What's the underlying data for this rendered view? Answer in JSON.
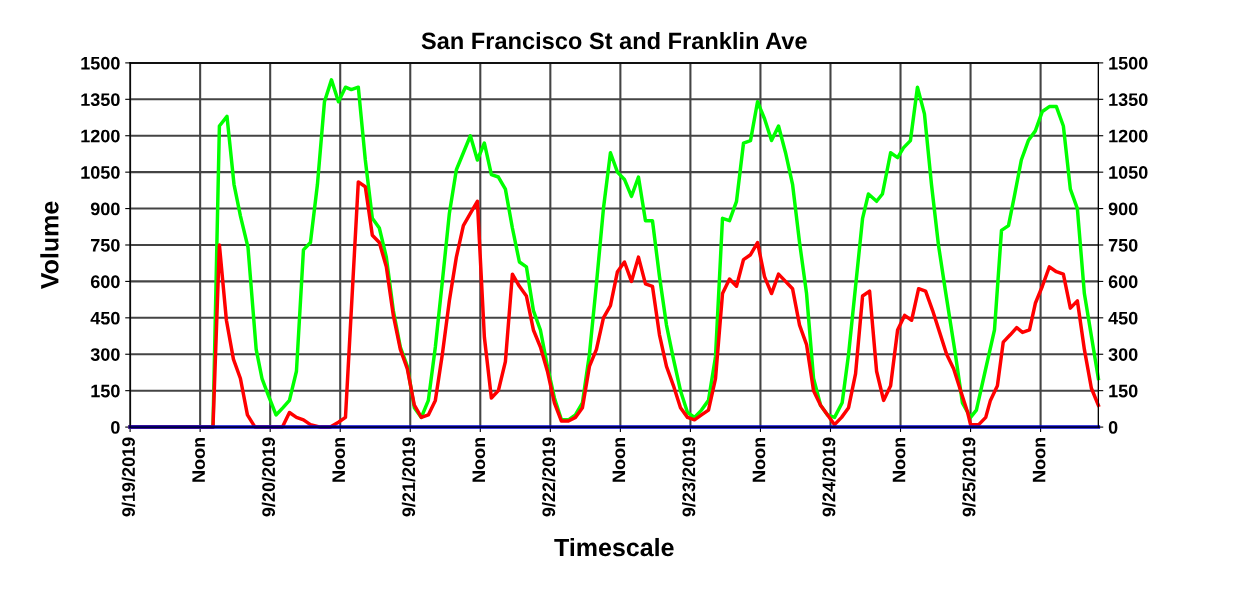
{
  "chart_data": {
    "type": "line",
    "title": "San Francisco St and Franklin Ave",
    "xlabel": "Timescale",
    "ylabel": "Volume",
    "xlim": [
      "2019-09-19T00:00",
      "2019-09-25T21:54"
    ],
    "xticks": [
      {
        "value": "2019-09-19T00:00",
        "label": "9/19/2019"
      },
      {
        "value": "2019-09-19T12:00",
        "label": "Noon"
      },
      {
        "value": "2019-09-20T00:00",
        "label": "9/20/2019"
      },
      {
        "value": "2019-09-20T12:00",
        "label": "Noon"
      },
      {
        "value": "2019-09-21T00:00",
        "label": "9/21/2019"
      },
      {
        "value": "2019-09-21T12:00",
        "label": "Noon"
      },
      {
        "value": "2019-09-22T00:00",
        "label": "9/22/2019"
      },
      {
        "value": "2019-09-22T12:00",
        "label": "Noon"
      },
      {
        "value": "2019-09-23T00:00",
        "label": "9/23/2019"
      },
      {
        "value": "2019-09-23T12:00",
        "label": "Noon"
      },
      {
        "value": "2019-09-24T00:00",
        "label": "9/24/2019"
      },
      {
        "value": "2019-09-24T12:00",
        "label": "Noon"
      },
      {
        "value": "2019-09-25T00:00",
        "label": "9/25/2019"
      },
      {
        "value": "2019-09-25T12:00",
        "label": "Noon"
      }
    ],
    "ylim": [
      0,
      1500
    ],
    "yticks": [
      0,
      150,
      300,
      450,
      600,
      750,
      900,
      1050,
      1200,
      1350,
      1500
    ],
    "y2lim": [
      0,
      1500
    ],
    "y2ticks": [
      0,
      150,
      300,
      450,
      600,
      750,
      900,
      1050,
      1200,
      1350,
      1500
    ],
    "grid": true,
    "marker": "none",
    "line_style": "solid",
    "series": [
      {
        "color": "#00ff00",
        "x": [
          "2019-09-19T00:00",
          "2019-09-19T14:12",
          "2019-09-19T15:18",
          "2019-09-19T16:36",
          "2019-09-19T17:48",
          "2019-09-19T18:54",
          "2019-09-19T20:12",
          "2019-09-19T21:36",
          "2019-09-19T22:36",
          "2019-09-19T23:42",
          "2019-09-20T01:00",
          "2019-09-20T02:12",
          "2019-09-20T03:18",
          "2019-09-20T04:30",
          "2019-09-20T05:42",
          "2019-09-20T06:54",
          "2019-09-20T08:06",
          "2019-09-20T09:18",
          "2019-09-20T10:30",
          "2019-09-20T11:42",
          "2019-09-20T12:54",
          "2019-09-20T13:54",
          "2019-09-20T15:06",
          "2019-09-20T16:18",
          "2019-09-20T17:30",
          "2019-09-20T18:42",
          "2019-09-20T19:54",
          "2019-09-20T21:06",
          "2019-09-20T22:18",
          "2019-09-20T23:30",
          "2019-09-21T00:42",
          "2019-09-21T01:54",
          "2019-09-21T03:06",
          "2019-09-21T04:18",
          "2019-09-21T05:30",
          "2019-09-21T06:42",
          "2019-09-21T07:54",
          "2019-09-21T10:18",
          "2019-09-21T11:30",
          "2019-09-21T12:42",
          "2019-09-21T13:54",
          "2019-09-21T15:06",
          "2019-09-21T16:18",
          "2019-09-21T17:30",
          "2019-09-21T18:42",
          "2019-09-21T19:54",
          "2019-09-21T21:06",
          "2019-09-21T22:18",
          "2019-09-21T23:30",
          "2019-09-22T00:42",
          "2019-09-22T01:54",
          "2019-09-22T03:06",
          "2019-09-22T04:18",
          "2019-09-22T05:30",
          "2019-09-22T06:42",
          "2019-09-22T07:54",
          "2019-09-22T09:06",
          "2019-09-22T10:18",
          "2019-09-22T11:30",
          "2019-09-22T12:42",
          "2019-09-22T13:54",
          "2019-09-22T15:06",
          "2019-09-22T16:18",
          "2019-09-22T17:30",
          "2019-09-22T18:42",
          "2019-09-22T19:54",
          "2019-09-22T21:06",
          "2019-09-22T22:18",
          "2019-09-22T23:30",
          "2019-09-23T00:42",
          "2019-09-23T01:54",
          "2019-09-23T03:06",
          "2019-09-23T04:18",
          "2019-09-23T05:30",
          "2019-09-23T06:42",
          "2019-09-23T07:54",
          "2019-09-23T09:06",
          "2019-09-23T10:18",
          "2019-09-23T11:30",
          "2019-09-23T12:42",
          "2019-09-23T13:54",
          "2019-09-23T15:06",
          "2019-09-23T16:18",
          "2019-09-23T17:30",
          "2019-09-23T18:42",
          "2019-09-23T19:54",
          "2019-09-23T21:06",
          "2019-09-23T22:18",
          "2019-09-23T23:30",
          "2019-09-24T00:42",
          "2019-09-24T02:00",
          "2019-09-24T03:06",
          "2019-09-24T05:30",
          "2019-09-24T06:30",
          "2019-09-24T07:54",
          "2019-09-24T08:54",
          "2019-09-24T10:18",
          "2019-09-24T11:30",
          "2019-09-24T12:30",
          "2019-09-24T13:42",
          "2019-09-24T14:54",
          "2019-09-24T16:06",
          "2019-09-24T17:18",
          "2019-09-24T18:30",
          "2019-09-24T19:42",
          "2019-09-24T21:24",
          "2019-09-24T22:36",
          "2019-09-25T00:00",
          "2019-09-25T01:00",
          "2019-09-25T02:30",
          "2019-09-25T04:06",
          "2019-09-25T05:18",
          "2019-09-25T06:30",
          "2019-09-25T07:30",
          "2019-09-25T08:42",
          "2019-09-25T09:54",
          "2019-09-25T11:06",
          "2019-09-25T12:18",
          "2019-09-25T13:30",
          "2019-09-25T14:42",
          "2019-09-25T15:54",
          "2019-09-25T17:06",
          "2019-09-25T18:18",
          "2019-09-25T19:30",
          "2019-09-25T21:54"
        ],
        "values": [
          0,
          0,
          1240,
          1280,
          1000,
          870,
          740,
          320,
          200,
          130,
          50,
          80,
          110,
          230,
          730,
          760,
          1000,
          1340,
          1430,
          1340,
          1400,
          1390,
          1400,
          1100,
          860,
          820,
          700,
          480,
          330,
          250,
          80,
          40,
          110,
          330,
          600,
          880,
          1060,
          1200,
          1100,
          1170,
          1040,
          1030,
          980,
          820,
          680,
          660,
          480,
          400,
          250,
          120,
          30,
          30,
          50,
          100,
          300,
          590,
          900,
          1130,
          1050,
          1020,
          950,
          1030,
          850,
          850,
          620,
          420,
          280,
          150,
          60,
          40,
          70,
          110,
          290,
          860,
          850,
          930,
          1170,
          1180,
          1340,
          1270,
          1180,
          1240,
          1130,
          1000,
          760,
          550,
          200,
          90,
          50,
          40,
          100,
          300,
          860,
          960,
          930,
          960,
          1130,
          1110,
          1150,
          1180,
          1400,
          1290,
          1000,
          750,
          560,
          300,
          100,
          40,
          70,
          230,
          400,
          810,
          830,
          950,
          1100,
          1180,
          1220,
          1300,
          1320,
          1320,
          1240,
          980,
          900,
          550,
          200
        ]
      },
      {
        "color": "#ff0000",
        "x": [
          "2019-09-19T00:00",
          "2019-09-19T14:12",
          "2019-09-19T15:18",
          "2019-09-19T16:30",
          "2019-09-19T17:42",
          "2019-09-19T18:54",
          "2019-09-19T20:06",
          "2019-09-19T21:24",
          "2019-09-20T02:06",
          "2019-09-20T03:18",
          "2019-09-20T04:30",
          "2019-09-20T05:42",
          "2019-09-20T06:54",
          "2019-09-20T08:36",
          "2019-09-20T10:18",
          "2019-09-20T11:42",
          "2019-09-20T12:54",
          "2019-09-20T15:06",
          "2019-09-20T16:18",
          "2019-09-20T17:30",
          "2019-09-20T18:42",
          "2019-09-20T19:54",
          "2019-09-20T21:06",
          "2019-09-20T22:18",
          "2019-09-20T23:30",
          "2019-09-21T00:42",
          "2019-09-21T01:54",
          "2019-09-21T03:06",
          "2019-09-21T04:18",
          "2019-09-21T05:30",
          "2019-09-21T06:42",
          "2019-09-21T07:54",
          "2019-09-21T09:06",
          "2019-09-21T10:18",
          "2019-09-21T11:30",
          "2019-09-21T12:42",
          "2019-09-21T13:54",
          "2019-09-21T15:06",
          "2019-09-21T16:18",
          "2019-09-21T17:30",
          "2019-09-21T18:42",
          "2019-09-21T19:54",
          "2019-09-21T21:06",
          "2019-09-21T22:18",
          "2019-09-21T23:30",
          "2019-09-22T00:42",
          "2019-09-22T01:54",
          "2019-09-22T03:06",
          "2019-09-22T04:18",
          "2019-09-22T05:30",
          "2019-09-22T06:42",
          "2019-09-22T07:54",
          "2019-09-22T09:06",
          "2019-09-22T10:18",
          "2019-09-22T11:30",
          "2019-09-22T12:42",
          "2019-09-22T13:54",
          "2019-09-22T15:06",
          "2019-09-22T16:18",
          "2019-09-22T17:30",
          "2019-09-22T18:42",
          "2019-09-22T19:54",
          "2019-09-22T21:06",
          "2019-09-22T22:18",
          "2019-09-22T23:30",
          "2019-09-23T00:42",
          "2019-09-23T01:54",
          "2019-09-23T03:06",
          "2019-09-23T04:18",
          "2019-09-23T05:30",
          "2019-09-23T06:42",
          "2019-09-23T07:54",
          "2019-09-23T09:06",
          "2019-09-23T10:18",
          "2019-09-23T11:30",
          "2019-09-23T12:42",
          "2019-09-23T13:54",
          "2019-09-23T15:06",
          "2019-09-23T16:18",
          "2019-09-23T17:30",
          "2019-09-23T18:42",
          "2019-09-23T19:54",
          "2019-09-23T21:06",
          "2019-09-23T22:18",
          "2019-09-23T23:30",
          "2019-09-24T00:42",
          "2019-09-24T01:54",
          "2019-09-24T03:06",
          "2019-09-24T04:18",
          "2019-09-24T05:30",
          "2019-09-24T06:42",
          "2019-09-24T07:54",
          "2019-09-24T09:06",
          "2019-09-24T10:18",
          "2019-09-24T11:30",
          "2019-09-24T12:42",
          "2019-09-24T13:54",
          "2019-09-24T15:06",
          "2019-09-24T16:18",
          "2019-09-24T17:30",
          "2019-09-24T18:42",
          "2019-09-24T19:54",
          "2019-09-24T21:06",
          "2019-09-24T22:18",
          "2019-09-24T23:30",
          "2019-09-25T00:00",
          "2019-09-25T01:24",
          "2019-09-25T02:36",
          "2019-09-25T03:24",
          "2019-09-25T04:36",
          "2019-09-25T05:36",
          "2019-09-25T06:48",
          "2019-09-25T07:54",
          "2019-09-25T08:54",
          "2019-09-25T10:06",
          "2019-09-25T11:06",
          "2019-09-25T12:18",
          "2019-09-25T13:30",
          "2019-09-25T14:42",
          "2019-09-25T15:54",
          "2019-09-25T17:06",
          "2019-09-25T18:18",
          "2019-09-25T19:30",
          "2019-09-25T20:42",
          "2019-09-25T21:54"
        ],
        "values": [
          0,
          0,
          750,
          440,
          280,
          200,
          50,
          0,
          0,
          60,
          40,
          30,
          10,
          0,
          0,
          20,
          40,
          1010,
          990,
          790,
          760,
          660,
          460,
          320,
          240,
          90,
          40,
          50,
          110,
          300,
          520,
          700,
          830,
          880,
          930,
          370,
          120,
          150,
          270,
          630,
          580,
          540,
          400,
          330,
          230,
          100,
          25,
          25,
          40,
          80,
          250,
          320,
          450,
          500,
          640,
          680,
          600,
          700,
          590,
          580,
          380,
          250,
          170,
          80,
          40,
          30,
          50,
          70,
          200,
          550,
          610,
          580,
          690,
          710,
          760,
          620,
          550,
          630,
          600,
          570,
          420,
          340,
          150,
          90,
          50,
          10,
          40,
          80,
          220,
          540,
          560,
          230,
          110,
          170,
          400,
          460,
          440,
          570,
          560,
          480,
          390,
          300,
          240,
          150,
          60,
          10,
          10,
          40,
          110,
          170,
          350,
          380,
          410,
          390,
          400,
          510,
          580,
          660,
          640,
          630,
          490,
          520,
          320,
          160,
          90
        ]
      },
      {
        "color": "#0000cc",
        "x": [
          "2019-09-19T00:00",
          "2019-09-25T21:54"
        ],
        "values": [
          0,
          0
        ]
      }
    ]
  }
}
